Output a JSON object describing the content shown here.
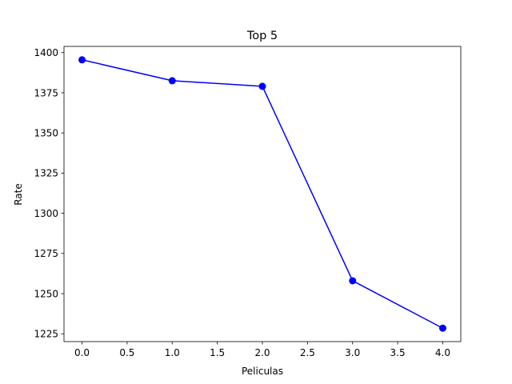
{
  "chart_data": {
    "type": "line",
    "title": "Top 5",
    "xlabel": "Peliculas",
    "ylabel": "Rate",
    "x": [
      0,
      1,
      2,
      3,
      4
    ],
    "y": [
      1395.5,
      1382.5,
      1379.0,
      1258.0,
      1228.5
    ],
    "xlim": [
      -0.2,
      4.2
    ],
    "ylim": [
      1220.15,
      1403.85
    ],
    "xticks": [
      0.0,
      0.5,
      1.0,
      1.5,
      2.0,
      2.5,
      3.0,
      3.5,
      4.0
    ],
    "xtick_labels": [
      "0.0",
      "0.5",
      "1.0",
      "1.5",
      "2.0",
      "2.5",
      "3.0",
      "3.5",
      "4.0"
    ],
    "yticks": [
      1225,
      1250,
      1275,
      1300,
      1325,
      1350,
      1375,
      1400
    ],
    "ytick_labels": [
      "1225",
      "1250",
      "1275",
      "1300",
      "1325",
      "1350",
      "1375",
      "1400"
    ],
    "line_color": "#0000ff",
    "marker": "circle",
    "grid": false
  }
}
